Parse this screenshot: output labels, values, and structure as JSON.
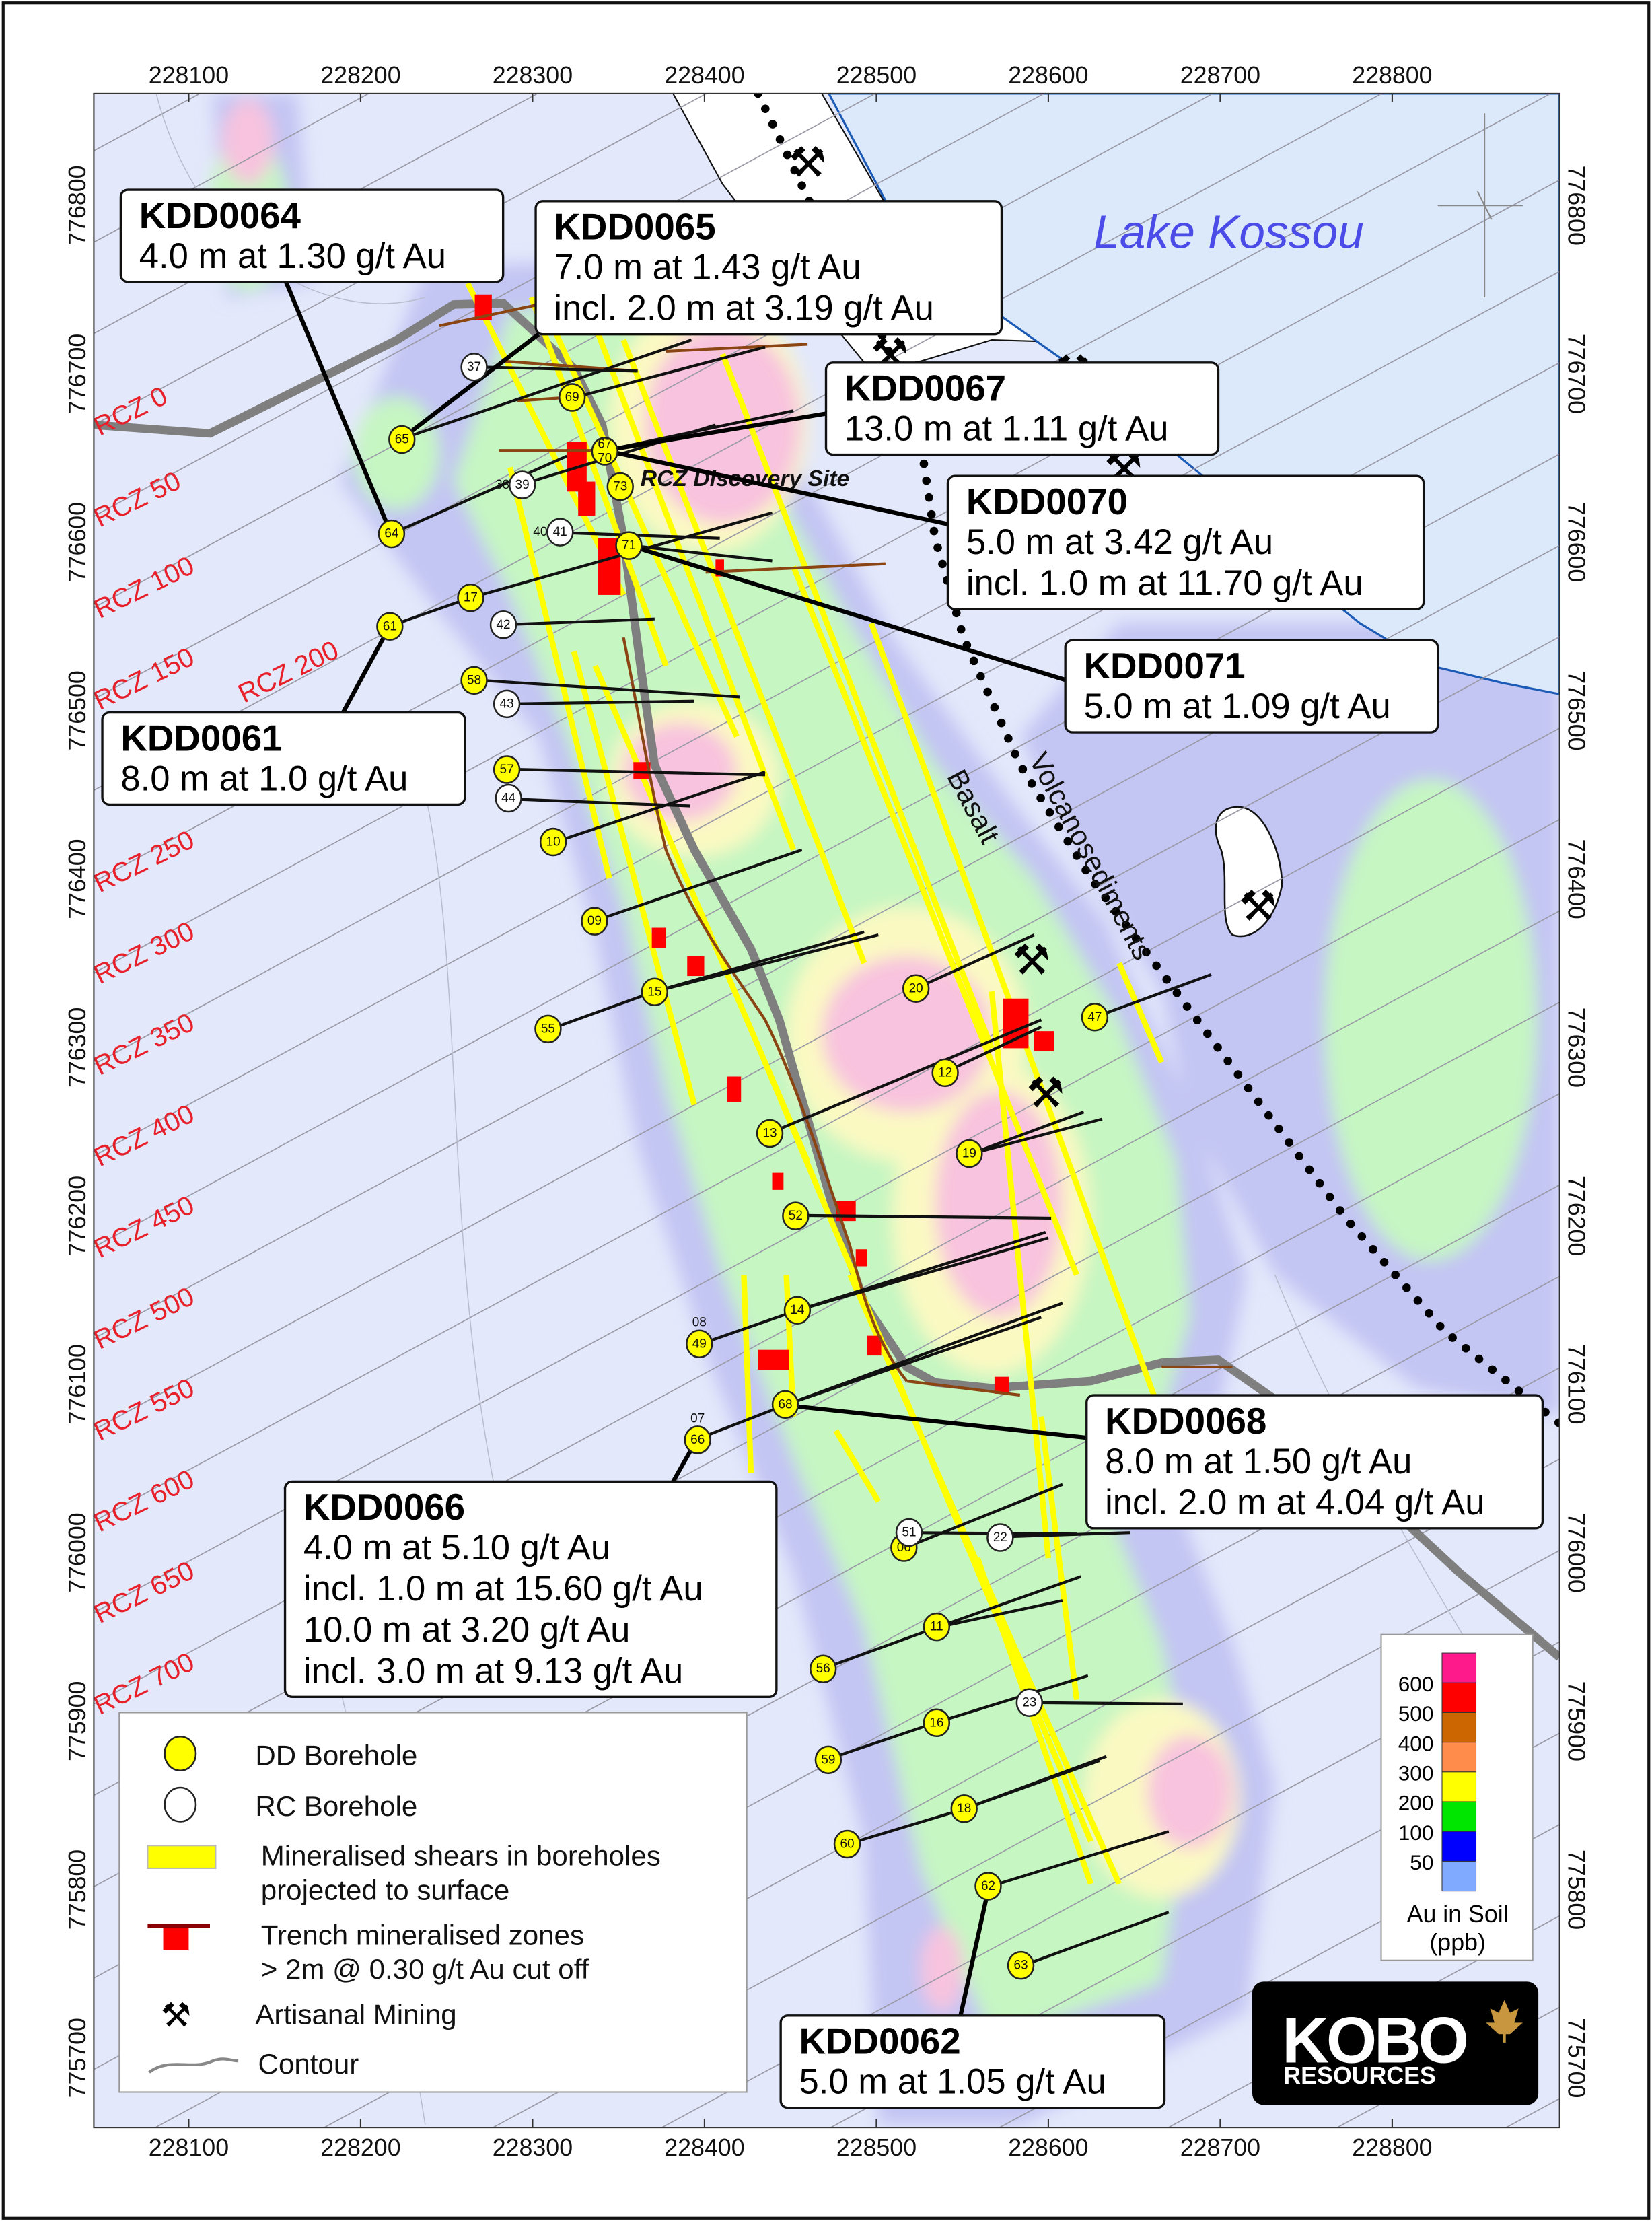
{
  "axes": {
    "easting_ticks": [
      "228100",
      "228200",
      "228300",
      "228400",
      "228500",
      "228600",
      "228700",
      "228800"
    ],
    "northing_ticks": [
      "776800",
      "776700",
      "776600",
      "776500",
      "776400",
      "776300",
      "776200",
      "776100",
      "776000",
      "775900",
      "775800",
      "775700"
    ]
  },
  "places": {
    "lake": "Lake Kossou",
    "discovery_site": "RCZ Discovery Site",
    "volcanosediments": "Volcanosediments",
    "basalt": "Basalt"
  },
  "rcz_labels": [
    "RCZ 0",
    "RCZ 50",
    "RCZ 100",
    "RCZ 150",
    "RCZ 200",
    "RCZ 250",
    "RCZ 300",
    "RCZ 350",
    "RCZ 400",
    "RCZ 450",
    "RCZ 500",
    "RCZ 550",
    "RCZ 600",
    "RCZ 650",
    "RCZ 700"
  ],
  "callouts": [
    {
      "hole": "KDD0064",
      "lines": [
        "4.0 m at 1.30 g/t Au"
      ]
    },
    {
      "hole": "KDD0065",
      "lines": [
        "7.0 m at 1.43 g/t Au",
        "incl. 2.0 m at 3.19 g/t Au"
      ]
    },
    {
      "hole": "KDD0067",
      "lines": [
        "13.0 m at 1.11 g/t Au"
      ]
    },
    {
      "hole": "KDD0070",
      "lines": [
        "5.0 m at 3.42 g/t Au",
        "incl. 1.0 m at 11.70 g/t Au"
      ]
    },
    {
      "hole": "KDD0071",
      "lines": [
        "5.0 m at 1.09 g/t Au"
      ]
    },
    {
      "hole": "KDD0061",
      "lines": [
        "8.0 m at 1.0 g/t Au"
      ]
    },
    {
      "hole": "KDD0066",
      "lines": [
        "4.0 m at 5.10 g/t Au",
        "incl. 1.0 m at 15.60 g/t Au",
        "10.0 m at 3.20 g/t Au",
        "incl. 3.0 m at 9.13 g/t Au"
      ]
    },
    {
      "hole": "KDD0068",
      "lines": [
        "8.0 m at 1.50 g/t Au",
        "incl. 2.0 m at 4.04 g/t Au"
      ]
    },
    {
      "hole": "KDD0062",
      "lines": [
        "5.0 m at 1.05 g/t Au"
      ]
    }
  ],
  "boreholes": [
    {
      "id": "64",
      "type": "DD",
      "e": 228218,
      "n": 776605
    },
    {
      "id": "65",
      "type": "DD",
      "e": 228224,
      "n": 776661
    },
    {
      "id": "69",
      "type": "DD",
      "e": 228323,
      "n": 776686
    },
    {
      "id": "67/70",
      "type": "DD",
      "e": 228342,
      "n": 776654
    },
    {
      "id": "73",
      "type": "DD",
      "e": 228351,
      "n": 776633
    },
    {
      "id": "71",
      "type": "DD",
      "e": 228356,
      "n": 776598
    },
    {
      "id": "17",
      "type": "DD",
      "e": 228264,
      "n": 776567
    },
    {
      "id": "61",
      "type": "DD",
      "e": 228217,
      "n": 776550
    },
    {
      "id": "58",
      "type": "DD",
      "e": 228266,
      "n": 776518
    },
    {
      "id": "57",
      "type": "DD",
      "e": 228285,
      "n": 776465
    },
    {
      "id": "10",
      "type": "DD",
      "e": 228312,
      "n": 776422
    },
    {
      "id": "09",
      "type": "DD",
      "e": 228336,
      "n": 776375
    },
    {
      "id": "15",
      "type": "DD",
      "e": 228371,
      "n": 776333
    },
    {
      "id": "55",
      "type": "DD",
      "e": 228309,
      "n": 776311
    },
    {
      "id": "20",
      "type": "DD",
      "e": 228523,
      "n": 776335
    },
    {
      "id": "47",
      "type": "DD",
      "e": 228627,
      "n": 776318
    },
    {
      "id": "12",
      "type": "DD",
      "e": 228540,
      "n": 776285
    },
    {
      "id": "13",
      "type": "DD",
      "e": 228438,
      "n": 776249
    },
    {
      "id": "19",
      "type": "DD",
      "e": 228554,
      "n": 776237
    },
    {
      "id": "52",
      "type": "DD",
      "e": 228453,
      "n": 776200
    },
    {
      "id": "14",
      "type": "DD",
      "e": 228454,
      "n": 776144
    },
    {
      "id": "49",
      "type": "DD",
      "e": 228397,
      "n": 776124,
      "note": "08"
    },
    {
      "id": "68",
      "type": "DD",
      "e": 228447,
      "n": 776088
    },
    {
      "id": "66",
      "type": "DD",
      "e": 228396,
      "n": 776067,
      "note": "07"
    },
    {
      "id": "06",
      "type": "DD",
      "e": 228516,
      "n": 776003
    },
    {
      "id": "11",
      "type": "DD",
      "e": 228535,
      "n": 775956
    },
    {
      "id": "56",
      "type": "DD",
      "e": 228469,
      "n": 775931
    },
    {
      "id": "16",
      "type": "DD",
      "e": 228535,
      "n": 775899
    },
    {
      "id": "59",
      "type": "DD",
      "e": 228472,
      "n": 775877
    },
    {
      "id": "18",
      "type": "DD",
      "e": 228551,
      "n": 775848
    },
    {
      "id": "60",
      "type": "DD",
      "e": 228483,
      "n": 775827
    },
    {
      "id": "62",
      "type": "DD",
      "e": 228565,
      "n": 775802
    },
    {
      "id": "63",
      "type": "DD",
      "e": 228584,
      "n": 775755
    },
    {
      "id": "37",
      "type": "RC",
      "e": 228266,
      "n": 776704
    },
    {
      "id": "39",
      "type": "RC",
      "e": 228294,
      "n": 776634,
      "note": "38"
    },
    {
      "id": "41",
      "type": "RC",
      "e": 228316,
      "n": 776606,
      "note": "40"
    },
    {
      "id": "42",
      "type": "RC",
      "e": 228283,
      "n": 776551
    },
    {
      "id": "43",
      "type": "RC",
      "e": 228285,
      "n": 776504
    },
    {
      "id": "44",
      "type": "RC",
      "e": 228286,
      "n": 776448
    },
    {
      "id": "51",
      "type": "RC",
      "e": 228519,
      "n": 776012
    },
    {
      "id": "22",
      "type": "RC",
      "e": 228572,
      "n": 776009
    },
    {
      "id": "23",
      "type": "RC",
      "e": 228589,
      "n": 775911
    }
  ],
  "legend": {
    "dd": "DD Borehole",
    "rc": "RC Borehole",
    "shears_1": "Mineralised shears in boreholes",
    "shears_2": "projected to surface",
    "trench_1": "Trench mineralised zones",
    "trench_2": "> 2m @ 0.30 g/t Au cut off",
    "mining": "Artisanal Mining",
    "contour": "Contour"
  },
  "soil_scale": {
    "title_1": "Au in Soil",
    "title_2": "(ppb)",
    "labels": [
      "600",
      "500",
      "400",
      "300",
      "200",
      "100",
      "50"
    ],
    "colors": [
      "#ff1a8c",
      "#ff0000",
      "#cc6600",
      "#ff8c4a",
      "#ffff00",
      "#00e600",
      "#0000ff",
      "#80aaff"
    ]
  },
  "logo": {
    "name": "KOBO",
    "sub": "RESOURCES",
    "accent": "#c8963e"
  },
  "colors": {
    "rcz": "#e8202a",
    "lake": "#dce9fb",
    "shore": "#1c5bb5",
    "shear": "#ffff00",
    "trench": "#ff0000",
    "background": "#e3e8fb"
  }
}
